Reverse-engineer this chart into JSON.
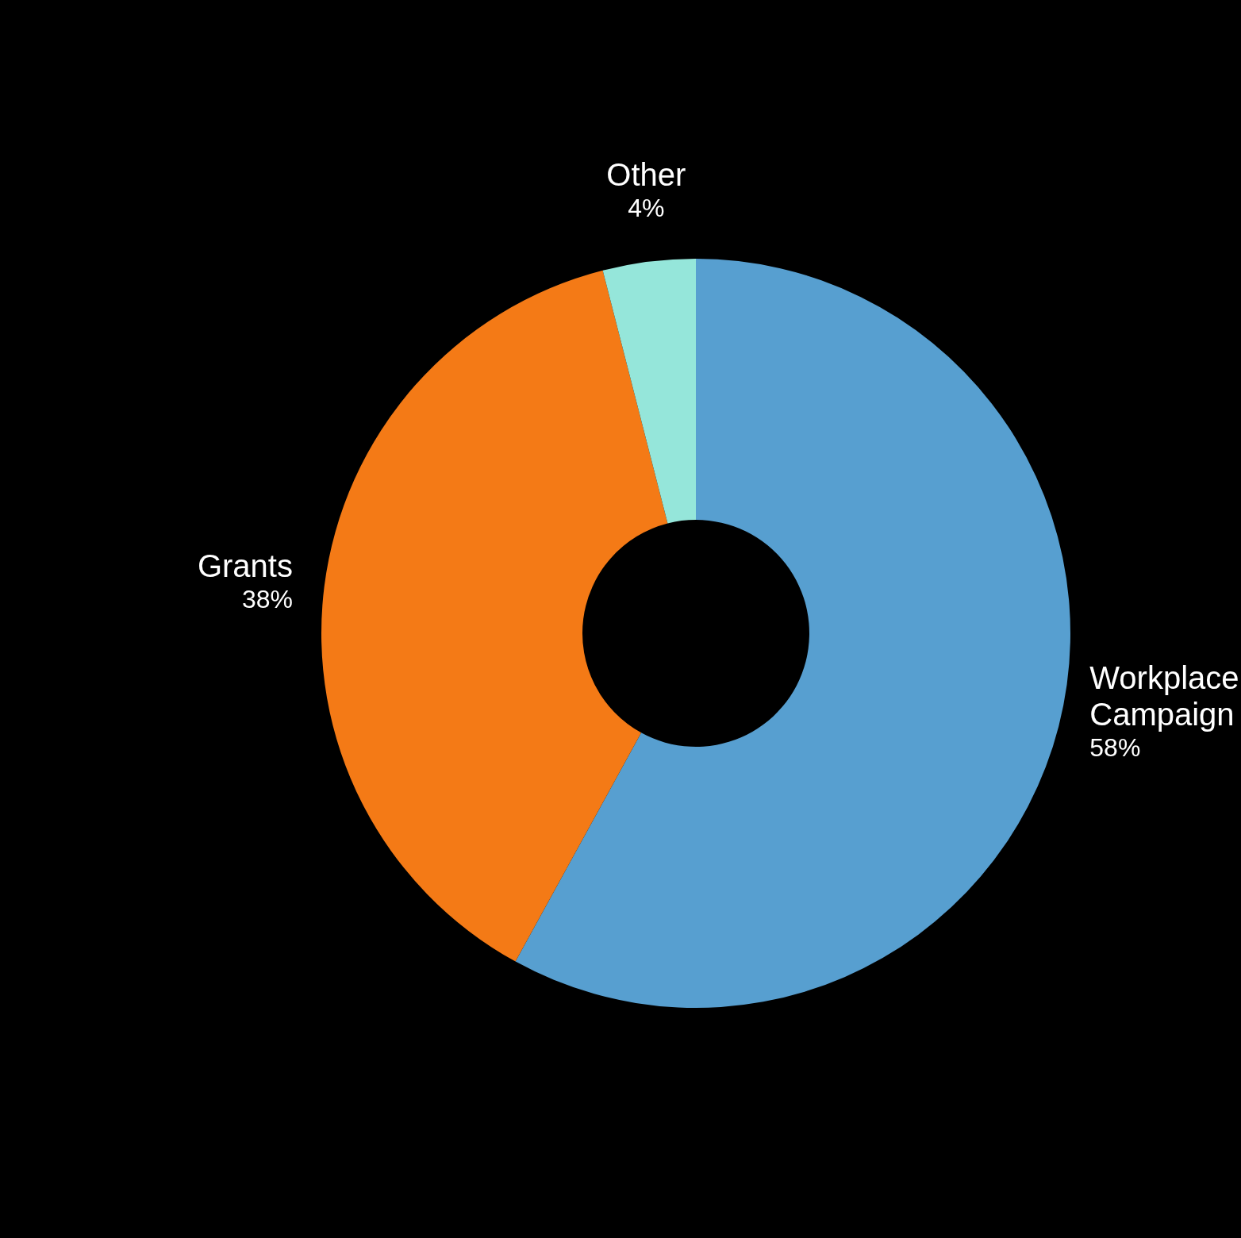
{
  "chart_data": {
    "type": "donut",
    "categories": [
      "Workplace Campaign",
      "Grants",
      "Other"
    ],
    "values": [
      58,
      38,
      4
    ],
    "value_labels": [
      "58%",
      "38%",
      "4%"
    ],
    "colors": [
      "#579fd0",
      "#f47a16",
      "#95e6da"
    ]
  }
}
